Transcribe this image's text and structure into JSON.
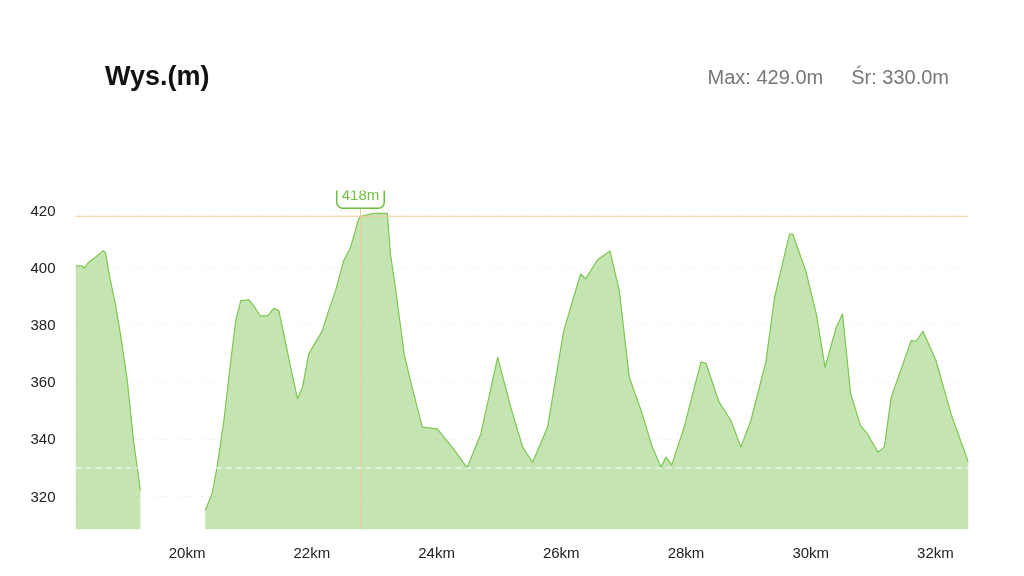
{
  "chart_data": {
    "type": "area",
    "title": "Wys.(m)",
    "annotations": [
      "Max: 429.0m",
      "Śr: 330.0m",
      {
        "text": "418m",
        "x": 22.78,
        "y": 418
      }
    ],
    "x": [
      18.21,
      18.31,
      18.35,
      18.42,
      18.56,
      18.65,
      18.69,
      18.77,
      18.85,
      18.93,
      19.04,
      19.14,
      19.25,
      19.37,
      19.8,
      20.25,
      20.29,
      20.4,
      20.48,
      20.59,
      20.7,
      20.78,
      20.86,
      20.99,
      21.07,
      21.17,
      21.29,
      21.39,
      21.47,
      21.55,
      21.66,
      21.77,
      21.85,
      21.95,
      22.06,
      22.17,
      22.25,
      22.38,
      22.51,
      22.62,
      22.75,
      22.78,
      22.99,
      23.21,
      23.26,
      23.34,
      23.48,
      23.58,
      23.77,
      24.01,
      24.25,
      24.49,
      24.71,
      24.98,
      25.19,
      25.38,
      25.54,
      25.78,
      26.04,
      26.31,
      26.39,
      26.58,
      26.78,
      26.93,
      27.09,
      27.28,
      27.46,
      27.6,
      27.68,
      27.77,
      27.97,
      28.24,
      28.32,
      28.53,
      28.72,
      28.88,
      29.04,
      29.28,
      29.42,
      29.66,
      29.71,
      29.92,
      30.09,
      30.23,
      30.41,
      30.51,
      30.64,
      30.8,
      30.91,
      31.08,
      31.18,
      31.29,
      31.61,
      31.69,
      31.8,
      32.01,
      32.25,
      32.53
    ],
    "series": [
      {
        "color": "#7cc653",
        "values": [
          400.7,
          400.7,
          399.9,
          401.9,
          404.2,
          405.9,
          405.3,
          395.5,
          387.3,
          376.9,
          360.6,
          339.6,
          322.2,
          null,
          null,
          null,
          315.2,
          321,
          330.3,
          346.6,
          367.5,
          381.5,
          388.5,
          388.8,
          386.7,
          383.2,
          383.2,
          385.8,
          385,
          376.9,
          365.2,
          354.2,
          358.2,
          369.9,
          373.9,
          378,
          383.8,
          392,
          402.4,
          407.1,
          417,
          418,
          419,
          419,
          404.8,
          393.1,
          369.9,
          360.6,
          344.3,
          343.7,
          337.3,
          330.1,
          342,
          368.7,
          351.2,
          337.3,
          332,
          344.3,
          378,
          397.8,
          396.1,
          402.7,
          405.9,
          392,
          361.7,
          350.1,
          337.3,
          330.3,
          333.8,
          331,
          344.3,
          367,
          366.6,
          353,
          346.6,
          337.3,
          346.6,
          367,
          389.6,
          411.8,
          411.8,
          399,
          383.8,
          365.2,
          379.2,
          383.8,
          355.9,
          344.8,
          341.9,
          335.5,
          337.3,
          354.7,
          374.5,
          374.3,
          377.8,
          367.5,
          348.9,
          332
        ]
      }
    ],
    "xlim": [
      18.21,
      32.53
    ],
    "ylim": [
      308.5,
      427
    ],
    "xticks": [
      {
        "value": 20,
        "label": "20km"
      },
      {
        "value": 22,
        "label": "22km"
      },
      {
        "value": 24,
        "label": "24km"
      },
      {
        "value": 26,
        "label": "26km"
      },
      {
        "value": 28,
        "label": "28km"
      },
      {
        "value": 30,
        "label": "30km"
      },
      {
        "value": 32,
        "label": "32km"
      }
    ],
    "yticks": [
      320,
      340,
      360,
      380,
      400,
      420
    ],
    "grid": "y",
    "ref_lines": [
      {
        "axis": "x",
        "value": 22.78,
        "color": "#f3c79b",
        "line_style": "solid"
      },
      {
        "axis": "y",
        "value": 418,
        "color": "#f3c79b",
        "line_style": "solid"
      },
      {
        "axis": "y",
        "value": 330,
        "color": "#ffffff",
        "line_style": "dashed"
      }
    ]
  }
}
